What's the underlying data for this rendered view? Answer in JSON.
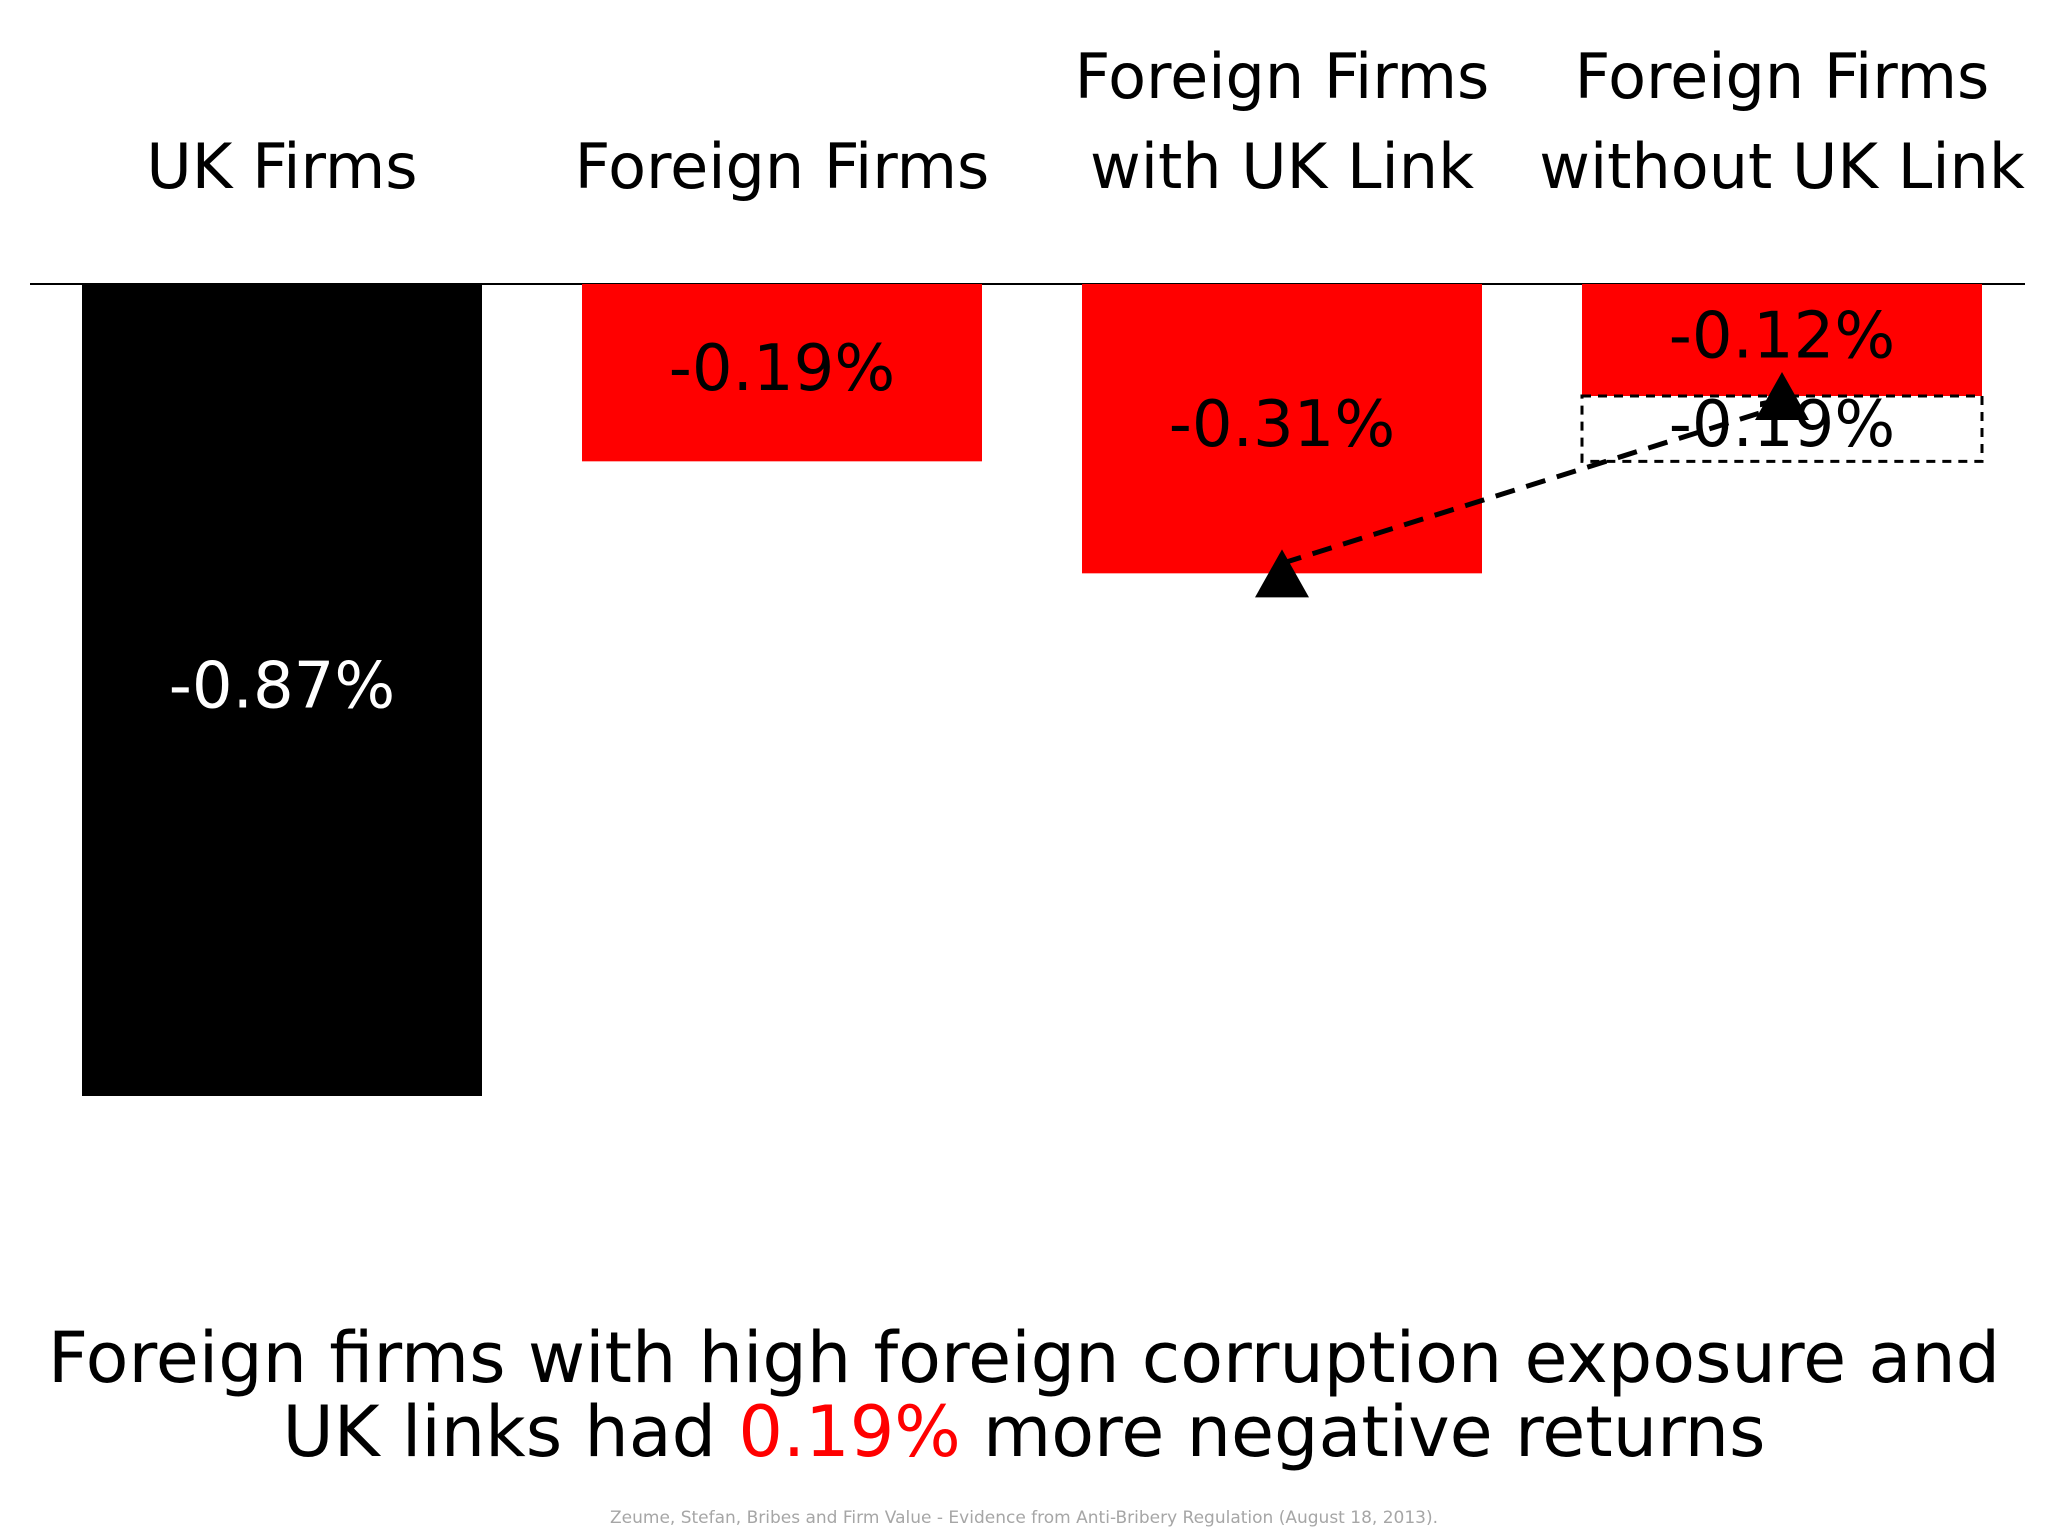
{
  "chart_data": {
    "type": "bar",
    "categories": [
      [
        "UK Firms"
      ],
      [
        "Foreign Firms"
      ],
      [
        "Foreign Firms",
        "with UK Link"
      ],
      [
        "Foreign Firms",
        "without UK Link"
      ]
    ],
    "values": [
      -0.87,
      -0.19,
      -0.31,
      -0.12
    ],
    "value_labels": [
      "-0.87%",
      "-0.19%",
      "-0.31%",
      "-0.12%"
    ],
    "bar_colors": [
      "#000000",
      "#ff0000",
      "#ff0000",
      "#ff0000"
    ],
    "value_label_colors": [
      "#ffffff",
      "#000000",
      "#000000",
      "#000000"
    ],
    "gap": {
      "category_index": 3,
      "base": -0.12,
      "value": -0.19,
      "label": "-0.19%"
    },
    "arrow": {
      "from_category": 2,
      "from_value": -0.31,
      "to_category": 3,
      "to_value": -0.12,
      "style": "dashed"
    },
    "ylim": [
      -0.87,
      0
    ],
    "grid": false,
    "legend": "none",
    "title": "",
    "xlabel": "",
    "ylabel": ""
  },
  "caption": {
    "line1": "Foreign firms with high foreign corruption exposure and",
    "line2_before": "UK links had ",
    "line2_highlight": "0.19%",
    "line2_after": " more negative returns"
  },
  "source": "Zeume, Stefan, Bribes and Firm Value - Evidence from Anti-Bribery Regulation (August 18, 2013).",
  "colors": {
    "highlight": "#ff0000",
    "source_text": "#a6a6a6"
  }
}
